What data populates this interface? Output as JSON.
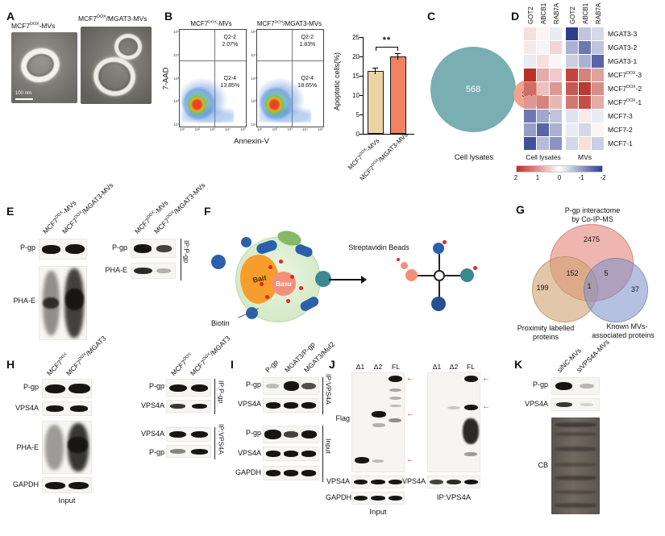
{
  "chart_data": [
    {
      "type": "bar",
      "title": "Apoptotic cells (%)",
      "categories": [
        "MCF7DOX-MVs",
        "MCF7DOX/MGAT3-MVs"
      ],
      "values": [
        16.3,
        20.0
      ],
      "errors": [
        0.8,
        0.8
      ],
      "ylabel": "Apoptotic cells(%)",
      "ylim": [
        0,
        25
      ],
      "significance": "**"
    },
    {
      "type": "venn",
      "title": "Cell lysates vs MVs",
      "sets": [
        "Cell lysates",
        "MVs"
      ],
      "values": [
        568,
        327
      ]
    },
    {
      "type": "venn3",
      "title": "P-gp interactome by Co-IP-MS",
      "sets": [
        "P-gp interactome by Co-IP-MS",
        "Proximity labelled proteins",
        "Known MVs-associated proteins"
      ],
      "regions": {
        "coip_only": 2475,
        "proximity_only": 199,
        "proximity_coip": 152,
        "all_three": 1,
        "coip_known": 5,
        "known_only": 37
      }
    },
    {
      "type": "heatmap",
      "columns": [
        "GOT2",
        "ABCB1",
        "RAB7A",
        "GOT2",
        "ABCB1",
        "RAB7A"
      ],
      "column_groups": [
        "Cell lysates",
        "MVs"
      ],
      "rows": [
        "MGAT3-3",
        "MGAT3-2",
        "MGAT3-1",
        "MCF7DOX-3",
        "MCF7DOX-2",
        "MCF7DOX-1",
        "MCF7-3",
        "MCF7-2",
        "MCF7-1"
      ],
      "values": [
        [
          0.3,
          0.1,
          -0.2,
          -2.0,
          -0.6,
          -0.4
        ],
        [
          0.2,
          -0.1,
          0.4,
          -0.8,
          -1.4,
          -0.6
        ],
        [
          -0.2,
          0.3,
          0.1,
          -0.5,
          -0.8,
          -1.6
        ],
        [
          2.0,
          0.8,
          0.5,
          1.8,
          1.2,
          0.9
        ],
        [
          1.4,
          0.6,
          1.0,
          1.6,
          1.9,
          1.1
        ],
        [
          1.0,
          1.2,
          0.7,
          1.3,
          1.7,
          0.8
        ],
        [
          -1.4,
          -0.9,
          -0.6,
          -0.3,
          0.2,
          -0.2
        ],
        [
          -1.0,
          -1.6,
          -0.8,
          -0.2,
          -0.4,
          0.1
        ],
        [
          -1.8,
          -0.7,
          -1.1,
          -0.4,
          0.3,
          -0.5
        ]
      ],
      "scale_ticks": [
        2,
        1,
        0,
        -1,
        -2
      ]
    },
    {
      "type": "flow-quadrants",
      "x": "Annexin-V",
      "y": "7-AAD",
      "plots": [
        {
          "name": "MCF7DOX-MVs",
          "Q2-2": "2.07%",
          "Q2-4": "13.85%"
        },
        {
          "name": "MCF7DOX/MGAT3-MVs",
          "Q2-2": "1.83%",
          "Q2-4": "18.65%"
        }
      ]
    }
  ],
  "panels": {
    "A": {
      "label": "A",
      "img1_title": [
        {
          "t": "MCF7"
        },
        {
          "t": "DOX",
          "sup": true
        },
        {
          "t": "-MVs"
        }
      ],
      "img2_title": [
        {
          "t": "MCF7"
        },
        {
          "t": "DOX",
          "sup": true
        },
        {
          "t": "/MGAT3-MVs"
        }
      ],
      "scale": "100 nm"
    },
    "B": {
      "label": "B",
      "flow": {
        "title1": [
          {
            "t": "MCF7"
          },
          {
            "t": "DOX",
            "sup": true
          },
          {
            "t": "-MVs"
          }
        ],
        "title2": [
          {
            "t": "MCF7"
          },
          {
            "t": "DOX",
            "sup": true
          },
          {
            "t": "/MGAT3-MVs"
          }
        ],
        "y_axis": "7-AAD",
        "x_axis": "Annexin-V",
        "q_top_label": "Q2-2",
        "q_bottom_label": "Q2-4",
        "xticks": [
          "10¹",
          "10²",
          "10³",
          "10⁴",
          "10⁵"
        ],
        "yticks": [
          "10¹",
          "10²",
          "10³",
          "10⁴",
          "10⁵"
        ]
      },
      "chart": {
        "ylabel": "Apoptotic cells(%)",
        "yticks": [
          0,
          5,
          10,
          15,
          20,
          25
        ],
        "bar_colors": [
          "#ecd3a6",
          "#f08261"
        ],
        "cat1": [
          {
            "t": "MCF7"
          },
          {
            "t": "DOX",
            "sup": true
          },
          {
            "t": "-MVs"
          }
        ],
        "cat2": [
          {
            "t": "MCF7"
          },
          {
            "t": "DOX",
            "sup": true
          },
          {
            "t": "/MGAT3-MVs"
          }
        ],
        "significance": "**"
      }
    },
    "C": {
      "label": "C",
      "left_label": "Cell lysates",
      "right_label": "MVs"
    },
    "D": {
      "label": "D",
      "cols": [
        "GOT2",
        "ABCB1",
        "RAB7A",
        "GOT2",
        "ABCB1",
        "RAB7A"
      ],
      "rows": [
        [
          {
            "t": "MGAT3-3"
          }
        ],
        [
          {
            "t": "MGAT3-2"
          }
        ],
        [
          {
            "t": "MGAT3-1"
          }
        ],
        [
          {
            "t": "MCF7"
          },
          {
            "t": "DOX",
            "sup": true
          },
          {
            "t": "-3"
          }
        ],
        [
          {
            "t": "MCF7"
          },
          {
            "t": "DOX",
            "sup": true
          },
          {
            "t": "-2"
          }
        ],
        [
          {
            "t": "MCF7"
          },
          {
            "t": "DOX",
            "sup": true
          },
          {
            "t": "-1"
          }
        ],
        [
          {
            "t": "MCF7-3"
          }
        ],
        [
          {
            "t": "MCF7-2"
          }
        ],
        [
          {
            "t": "MCF7-1"
          }
        ]
      ],
      "group1": "Cell lysates",
      "group2": "MVs",
      "cbar": [
        "2",
        "1",
        "0",
        "-1",
        "-2"
      ]
    },
    "E": {
      "label": "E",
      "h1": [
        {
          "t": "MCF7"
        },
        {
          "t": "DOX",
          "sup": true
        },
        {
          "t": "-MVs"
        }
      ],
      "h2": [
        {
          "t": "MCF7"
        },
        {
          "t": "DOX",
          "sup": true
        },
        {
          "t": "/MGAT3-MVs"
        }
      ],
      "pgp": "P-gp",
      "phae": "PHA-E",
      "ip": "IP:P-gp"
    },
    "F": {
      "label": "F",
      "bait": "Bait",
      "basu": "Basu",
      "biotin": "Biotin",
      "beads": "Streptavidin Beads"
    },
    "G": {
      "label": "G",
      "title1": "P-gp interactome",
      "title2": "by Co-IP-MS",
      "left1": "Proximity labelled",
      "left2": "proteins",
      "right1": "Known MVs-",
      "right2": "associated proteins"
    },
    "H": {
      "label": "H",
      "h1": [
        {
          "t": "MCF7"
        },
        {
          "t": "DOX",
          "sup": true
        }
      ],
      "h2": [
        {
          "t": "MCF7"
        },
        {
          "t": "DOX",
          "sup": true
        },
        {
          "t": "/MGAT3"
        }
      ],
      "pgp": "P-gp",
      "vps4a": "VPS4A",
      "phae": "PHA-E",
      "gapdh": "GAPDH",
      "input": "Input",
      "ip_pgp": "IP:P-gp",
      "ip_vps4a": "IP:VPS4A"
    },
    "I": {
      "label": "I",
      "headers": [
        "P-gp",
        "MGAT3/P-gp",
        "MGAT3/Mul2"
      ],
      "pgp": "P-gp",
      "vps4a": "VPS4A",
      "gapdh": "GAPDH",
      "ip": "IP:VPS4A",
      "input": "Input"
    },
    "J": {
      "label": "J",
      "lanes": [
        "Δ1",
        "Δ2",
        "FL"
      ],
      "flag": "Flag",
      "vps4a": "VPS4A",
      "gapdh": "GAPDH",
      "input": "Input",
      "ip": "IP:VPS4A",
      "arrow": "←"
    },
    "K": {
      "label": "K",
      "h1": "siNC-MVs",
      "h2": "siVPS4A-MVs",
      "pgp": "P-gp",
      "vps4a": "VPS4A",
      "cb": "CB"
    }
  }
}
